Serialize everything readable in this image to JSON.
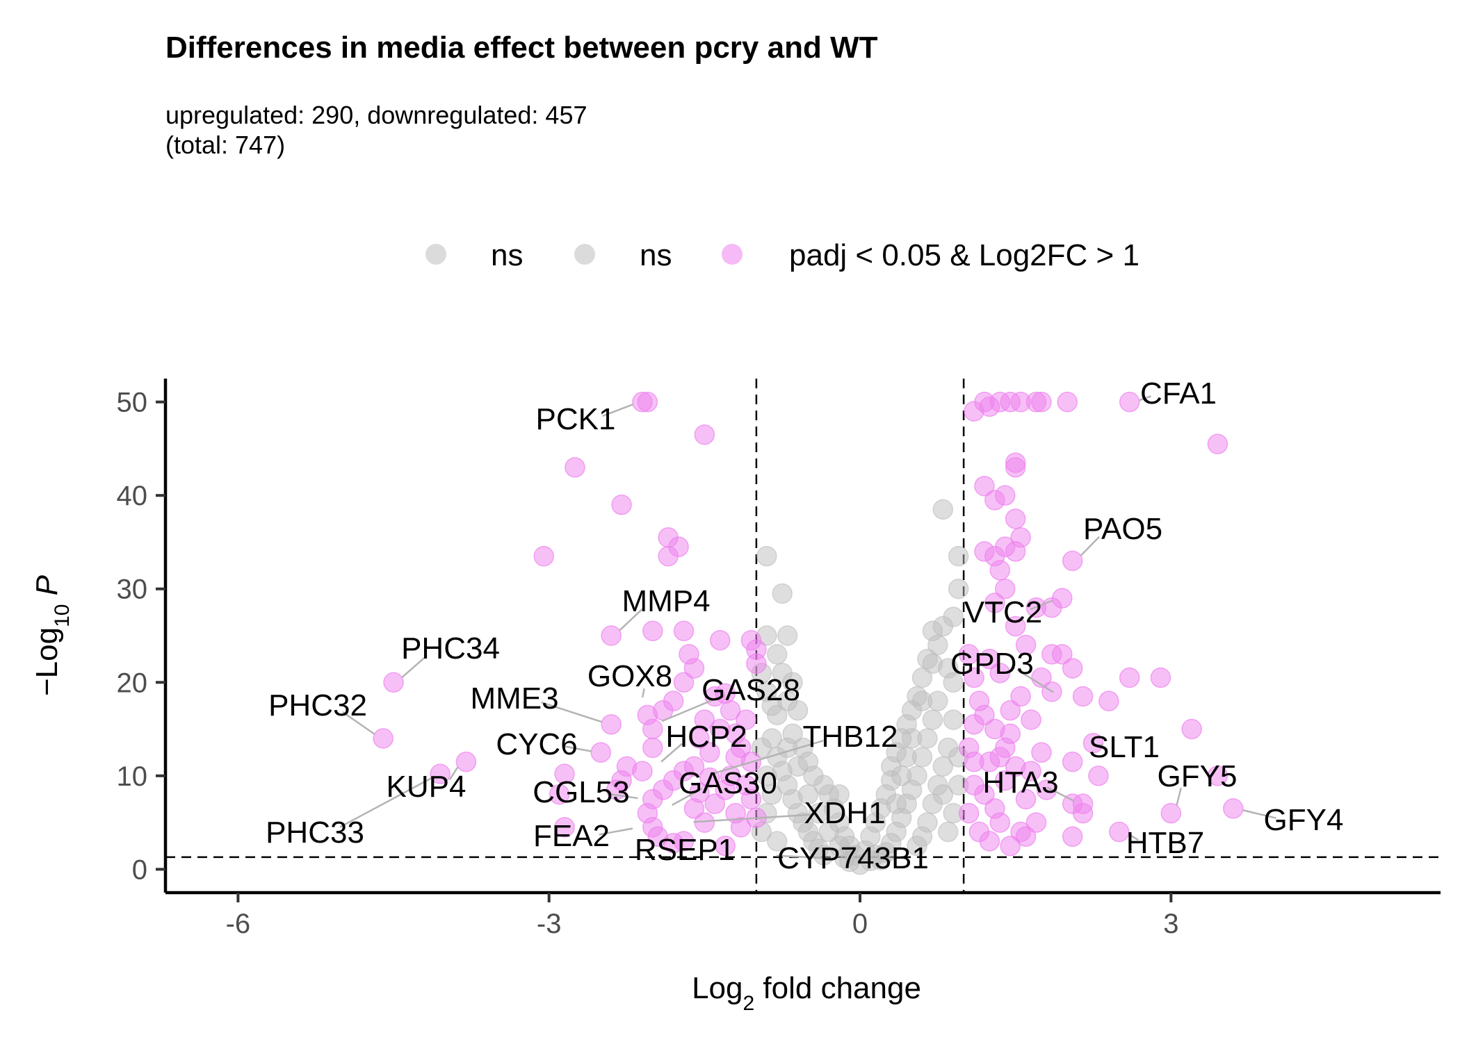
{
  "title": "Differences in media effect between pcry and WT",
  "subtitle": {
    "line1": "upregulated: 290, downregulated: 457",
    "line2": "(total: 747)"
  },
  "chart_data": {
    "type": "scatter",
    "xlabel": "Log2 fold change",
    "ylabel": "−Log10 P",
    "xlim": [
      -6.7,
      5.6
    ],
    "ylim": [
      -2.5,
      52.5
    ],
    "x_ticks": [
      -6,
      -3,
      0,
      3
    ],
    "y_ticks": [
      0,
      10,
      20,
      30,
      40,
      50
    ],
    "grid": false,
    "legend_position": "top",
    "thresholds": {
      "log2fc": [
        -1,
        1
      ],
      "neg_log10_p": 1.3
    },
    "colors": {
      "ns": "#bdbdbd",
      "significant": "#ee82ee"
    },
    "legend": [
      {
        "label": "ns",
        "color": "#bdbdbd"
      },
      {
        "label": "ns",
        "color": "#bdbdbd"
      },
      {
        "label": "padj < 0.05 & Log2FC > 1",
        "color": "#ee82ee"
      }
    ],
    "series": [
      {
        "name": "padj < 0.05 & Log2FC > 1",
        "points": [
          [
            -2.1,
            50
          ],
          [
            -2.05,
            50
          ],
          [
            -1.5,
            46.5
          ],
          [
            -2.75,
            43
          ],
          [
            -2.3,
            39
          ],
          [
            -1.85,
            35.5
          ],
          [
            -1.75,
            34.5
          ],
          [
            -1.85,
            33.5
          ],
          [
            -3.05,
            33.5
          ],
          [
            -1.35,
            24.5
          ],
          [
            -2.4,
            25
          ],
          [
            -2.0,
            25.5
          ],
          [
            -1.7,
            25.5
          ],
          [
            -1.65,
            23
          ],
          [
            -1.6,
            21.5
          ],
          [
            -1.7,
            20
          ],
          [
            -4.5,
            20
          ],
          [
            -4.6,
            14
          ],
          [
            -3.8,
            11.5
          ],
          [
            -4.05,
            10.2
          ],
          [
            -2.4,
            15.5
          ],
          [
            -2.5,
            12.5
          ],
          [
            -2.85,
            10.2
          ],
          [
            -2.9,
            8
          ],
          [
            -2.85,
            4.5
          ],
          [
            -2.05,
            16.5
          ],
          [
            -2.0,
            15
          ],
          [
            -2.0,
            13
          ],
          [
            -1.8,
            18
          ],
          [
            -1.9,
            17
          ],
          [
            -2.25,
            11
          ],
          [
            -2.3,
            9.5
          ],
          [
            -2.35,
            8.5
          ],
          [
            -2.1,
            10.5
          ],
          [
            -1.4,
            18.5
          ],
          [
            -1.3,
            18.8
          ],
          [
            -1.25,
            17
          ],
          [
            -1.5,
            16
          ],
          [
            -1.55,
            14
          ],
          [
            -1.35,
            15
          ],
          [
            -1.2,
            14.5
          ],
          [
            -1.15,
            13
          ],
          [
            -1.1,
            16
          ],
          [
            -1.45,
            12.5
          ],
          [
            -1.6,
            11
          ],
          [
            -1.7,
            10.5
          ],
          [
            -1.8,
            9.5
          ],
          [
            -1.9,
            8.5
          ],
          [
            -2.0,
            7.5
          ],
          [
            -2.05,
            6
          ],
          [
            -2.0,
            4.5
          ],
          [
            -1.95,
            3.5
          ],
          [
            -1.6,
            6.5
          ],
          [
            -1.5,
            5
          ],
          [
            -1.4,
            7
          ],
          [
            -1.3,
            8.5
          ],
          [
            -1.25,
            10
          ],
          [
            -1.2,
            6
          ],
          [
            -1.15,
            4.5
          ],
          [
            -1.1,
            9
          ],
          [
            -1.05,
            7.5
          ],
          [
            -1.05,
            11.5
          ],
          [
            -1.0,
            5.5
          ],
          [
            -1.2,
            12
          ],
          [
            -1.3,
            2.5
          ],
          [
            -1.7,
            3
          ],
          [
            -1.8,
            2.8
          ],
          [
            -1.55,
            8.2
          ],
          [
            -1.45,
            9.8
          ],
          [
            -1.05,
            24.5
          ],
          [
            -1.0,
            23.5
          ],
          [
            -1.0,
            22
          ],
          [
            1.2,
            50
          ],
          [
            1.35,
            50
          ],
          [
            1.45,
            50
          ],
          [
            1.55,
            50
          ],
          [
            1.7,
            50
          ],
          [
            1.75,
            50
          ],
          [
            2.0,
            50
          ],
          [
            2.6,
            50
          ],
          [
            1.1,
            49
          ],
          [
            1.25,
            49.5
          ],
          [
            3.45,
            45.5
          ],
          [
            1.5,
            43.5
          ],
          [
            1.5,
            43
          ],
          [
            1.2,
            41
          ],
          [
            1.3,
            39.5
          ],
          [
            1.4,
            40
          ],
          [
            1.5,
            37.5
          ],
          [
            1.55,
            35.5
          ],
          [
            1.4,
            34.5
          ],
          [
            1.2,
            34
          ],
          [
            1.3,
            33.5
          ],
          [
            1.5,
            34
          ],
          [
            1.35,
            32
          ],
          [
            2.05,
            33
          ],
          [
            1.95,
            29
          ],
          [
            1.85,
            28
          ],
          [
            1.3,
            28.5
          ],
          [
            1.4,
            30
          ],
          [
            1.7,
            28
          ],
          [
            1.5,
            26
          ],
          [
            1.6,
            24
          ],
          [
            1.85,
            23
          ],
          [
            1.95,
            23
          ],
          [
            2.05,
            21.5
          ],
          [
            1.75,
            20.5
          ],
          [
            1.85,
            19
          ],
          [
            1.05,
            23
          ],
          [
            1.1,
            20.5
          ],
          [
            1.25,
            22.5
          ],
          [
            1.35,
            21
          ],
          [
            1.45,
            17
          ],
          [
            1.55,
            18.5
          ],
          [
            1.65,
            16
          ],
          [
            1.4,
            13
          ],
          [
            1.3,
            15
          ],
          [
            1.2,
            16.5
          ],
          [
            1.15,
            18
          ],
          [
            1.1,
            11.5
          ],
          [
            2.15,
            18.5
          ],
          [
            2.6,
            20.5
          ],
          [
            2.9,
            20.5
          ],
          [
            2.4,
            18
          ],
          [
            3.2,
            15
          ],
          [
            2.25,
            13.5
          ],
          [
            2.05,
            11.5
          ],
          [
            2.3,
            10
          ],
          [
            3.45,
            10
          ],
          [
            3.0,
            6
          ],
          [
            3.6,
            6.5
          ],
          [
            2.5,
            4
          ],
          [
            2.05,
            3.5
          ],
          [
            2.15,
            7
          ],
          [
            2.15,
            6
          ],
          [
            2.05,
            7
          ],
          [
            1.1,
            9
          ],
          [
            1.2,
            8
          ],
          [
            1.3,
            6.5
          ],
          [
            1.4,
            9.5
          ],
          [
            1.5,
            11
          ],
          [
            1.6,
            7.5
          ],
          [
            1.7,
            5
          ],
          [
            1.65,
            10.5
          ],
          [
            1.75,
            12.5
          ],
          [
            1.15,
            4
          ],
          [
            1.25,
            3
          ],
          [
            1.35,
            5
          ],
          [
            1.45,
            2.5
          ],
          [
            1.55,
            4
          ],
          [
            1.05,
            6
          ],
          [
            1.05,
            13
          ],
          [
            1.8,
            8.5
          ],
          [
            1.25,
            11.5
          ],
          [
            1.45,
            14.5
          ],
          [
            1.6,
            3.5
          ],
          [
            1.1,
            15.5
          ],
          [
            1.35,
            12
          ]
        ]
      },
      {
        "name": "ns",
        "points": [
          [
            -0.9,
            33.5
          ],
          [
            -0.75,
            29.5
          ],
          [
            -0.9,
            25
          ],
          [
            -0.7,
            25
          ],
          [
            -0.8,
            23
          ],
          [
            -0.75,
            21
          ],
          [
            -0.65,
            20
          ],
          [
            -0.7,
            18
          ],
          [
            -0.6,
            17
          ],
          [
            -0.8,
            16.5
          ],
          [
            -0.65,
            14.5
          ],
          [
            -0.55,
            13
          ],
          [
            -0.5,
            11.5
          ],
          [
            -0.45,
            10
          ],
          [
            -0.35,
            9
          ],
          [
            -0.3,
            8
          ],
          [
            -0.25,
            6.5
          ],
          [
            -0.2,
            5
          ],
          [
            -0.15,
            3.5
          ],
          [
            -0.1,
            2.5
          ],
          [
            -0.05,
            1.5
          ],
          [
            0,
            0.5
          ],
          [
            -0.9,
            19
          ],
          [
            -0.85,
            17.5
          ],
          [
            -0.85,
            14
          ],
          [
            -0.8,
            12
          ],
          [
            -0.75,
            10.5
          ],
          [
            -0.7,
            9
          ],
          [
            -0.65,
            7.5
          ],
          [
            -0.6,
            6
          ],
          [
            -0.55,
            5
          ],
          [
            -0.5,
            4
          ],
          [
            -0.45,
            3
          ],
          [
            -0.4,
            2.2
          ],
          [
            -0.35,
            1.5
          ],
          [
            -0.9,
            10
          ],
          [
            -0.85,
            8
          ],
          [
            -0.9,
            6
          ],
          [
            -0.95,
            4
          ],
          [
            -0.8,
            3
          ],
          [
            -0.95,
            13
          ],
          [
            -0.95,
            21
          ],
          [
            -0.6,
            11
          ],
          [
            -0.7,
            13
          ],
          [
            -0.5,
            8
          ],
          [
            -0.4,
            6
          ],
          [
            -0.3,
            4
          ],
          [
            -0.2,
            2.5
          ],
          [
            -0.15,
            1.2
          ],
          [
            -0.1,
            0.8
          ],
          [
            -0.2,
            8
          ],
          [
            0.8,
            38.5
          ],
          [
            0.95,
            33.5
          ],
          [
            0.95,
            30
          ],
          [
            0.9,
            27
          ],
          [
            0.8,
            26
          ],
          [
            0.7,
            25.5
          ],
          [
            0.75,
            24
          ],
          [
            0.65,
            22.5
          ],
          [
            0.6,
            20.5
          ],
          [
            0.55,
            18.5
          ],
          [
            0.5,
            17
          ],
          [
            0.45,
            15.5
          ],
          [
            0.4,
            14
          ],
          [
            0.35,
            12.5
          ],
          [
            0.3,
            11
          ],
          [
            0.3,
            9.5
          ],
          [
            0.25,
            8
          ],
          [
            0.2,
            6.5
          ],
          [
            0.15,
            5
          ],
          [
            0.1,
            3.5
          ],
          [
            0.05,
            2
          ],
          [
            0.85,
            21.5
          ],
          [
            0.9,
            20
          ],
          [
            0.75,
            18
          ],
          [
            0.7,
            16
          ],
          [
            0.65,
            14
          ],
          [
            0.6,
            12
          ],
          [
            0.55,
            10
          ],
          [
            0.5,
            8.5
          ],
          [
            0.45,
            7
          ],
          [
            0.4,
            5.5
          ],
          [
            0.35,
            4
          ],
          [
            0.3,
            2.8
          ],
          [
            0.25,
            1.8
          ],
          [
            0.2,
            1
          ],
          [
            0.9,
            16
          ],
          [
            0.85,
            13
          ],
          [
            0.8,
            11
          ],
          [
            0.75,
            9
          ],
          [
            0.7,
            7
          ],
          [
            0.65,
            5
          ],
          [
            0.6,
            3.5
          ],
          [
            0.55,
            2.5
          ],
          [
            0.95,
            9
          ],
          [
            0.9,
            6
          ],
          [
            0.85,
            4
          ],
          [
            0.95,
            12
          ],
          [
            0.8,
            8
          ],
          [
            0.5,
            14
          ],
          [
            0.6,
            18
          ],
          [
            0.7,
            22
          ],
          [
            0.4,
            10
          ],
          [
            0.45,
            12
          ],
          [
            0.35,
            7
          ],
          [
            0.15,
            1.5
          ],
          [
            0.1,
            0.9
          ]
        ]
      }
    ],
    "labels": [
      {
        "text": "PCK1",
        "x": -2.1,
        "y": 50
      },
      {
        "text": "CFA1",
        "x": 2.6,
        "y": 50
      },
      {
        "text": "PAO5",
        "x": 2.05,
        "y": 33
      },
      {
        "text": "VTC2",
        "x": 1.95,
        "y": 29
      },
      {
        "text": "MMP4",
        "x": -2.4,
        "y": 25
      },
      {
        "text": "PHC34",
        "x": -4.5,
        "y": 20
      },
      {
        "text": "GPD3",
        "x": 1.95,
        "y": 18.5
      },
      {
        "text": "GOX8",
        "x": -2.05,
        "y": 17.5
      },
      {
        "text": "GAS28",
        "x": -2.0,
        "y": 15.5
      },
      {
        "text": "PHC32",
        "x": -4.6,
        "y": 14
      },
      {
        "text": "MME3",
        "x": -2.4,
        "y": 15.5
      },
      {
        "text": "THB12",
        "x": -1.5,
        "y": 10
      },
      {
        "text": "HCP2",
        "x": -2.0,
        "y": 11
      },
      {
        "text": "CYC6",
        "x": -2.5,
        "y": 12.5
      },
      {
        "text": "SLT1",
        "x": 2.25,
        "y": 13.5
      },
      {
        "text": "KUP4",
        "x": -3.8,
        "y": 11.5
      },
      {
        "text": "GFY5",
        "x": 3.0,
        "y": 6
      },
      {
        "text": "HTA3",
        "x": 2.15,
        "y": 7
      },
      {
        "text": "GAS30",
        "x": -1.9,
        "y": 6.5
      },
      {
        "text": "CGL53",
        "x": -2.05,
        "y": 7.5
      },
      {
        "text": "XDH1",
        "x": -1.7,
        "y": 5
      },
      {
        "text": "GFY4",
        "x": 3.6,
        "y": 6.5
      },
      {
        "text": "PHC33",
        "x": -4.05,
        "y": 10.2
      },
      {
        "text": "FEA2",
        "x": -2.1,
        "y": 4.5
      },
      {
        "text": "HTB7",
        "x": 2.5,
        "y": 4
      },
      {
        "text": "RSEP1",
        "x": -1.6,
        "y": 3
      },
      {
        "text": "CYP743B1",
        "x": -0.9,
        "y": 1.5
      }
    ]
  }
}
